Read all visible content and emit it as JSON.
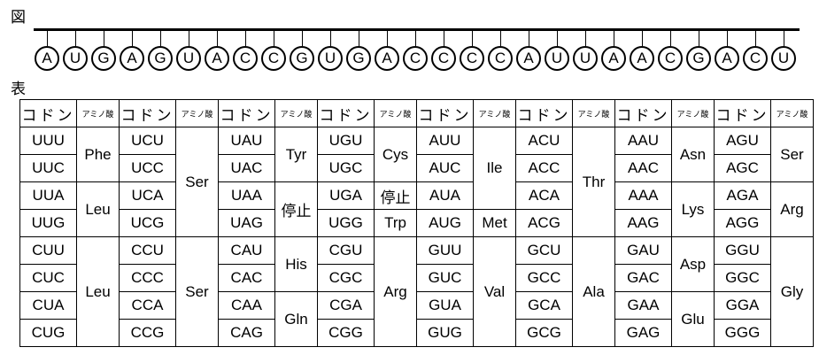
{
  "figure_label": "図",
  "table_label": "表",
  "sequence": [
    "A",
    "U",
    "G",
    "A",
    "G",
    "U",
    "A",
    "C",
    "C",
    "G",
    "U",
    "G",
    "A",
    "C",
    "C",
    "C",
    "C",
    "A",
    "U",
    "U",
    "A",
    "A",
    "C",
    "G",
    "A",
    "C",
    "U"
  ],
  "table": {
    "codon_header": "コドン",
    "amino_header": "アミノ酸",
    "columns": [
      {
        "codons": [
          "UUU",
          "UUC",
          "UUA",
          "UUG",
          "CUU",
          "CUC",
          "CUA",
          "CUG"
        ],
        "aminos": [
          {
            "name": "Phe",
            "span": 2
          },
          {
            "name": "Leu",
            "span": 2
          },
          {
            "name": "Leu",
            "span": 4
          }
        ]
      },
      {
        "codons": [
          "UCU",
          "UCC",
          "UCA",
          "UCG",
          "CCU",
          "CCC",
          "CCA",
          "CCG"
        ],
        "aminos": [
          {
            "name": "Ser",
            "span": 4
          },
          {
            "name": "Ser",
            "span": 4
          }
        ]
      },
      {
        "codons": [
          "UAU",
          "UAC",
          "UAA",
          "UAG",
          "CAU",
          "CAC",
          "CAA",
          "CAG"
        ],
        "aminos": [
          {
            "name": "Tyr",
            "span": 2
          },
          {
            "name": "停止",
            "span": 2
          },
          {
            "name": "His",
            "span": 2
          },
          {
            "name": "Gln",
            "span": 2
          }
        ]
      },
      {
        "codons": [
          "UGU",
          "UGC",
          "UGA",
          "UGG",
          "CGU",
          "CGC",
          "CGA",
          "CGG"
        ],
        "aminos": [
          {
            "name": "Cys",
            "span": 2
          },
          {
            "name": "停止",
            "span": 1
          },
          {
            "name": "Trp",
            "span": 1
          },
          {
            "name": "Arg",
            "span": 4
          }
        ]
      },
      {
        "codons": [
          "AUU",
          "AUC",
          "AUA",
          "AUG",
          "GUU",
          "GUC",
          "GUA",
          "GUG"
        ],
        "aminos": [
          {
            "name": "Ile",
            "span": 3
          },
          {
            "name": "Met",
            "span": 1
          },
          {
            "name": "Val",
            "span": 4
          }
        ]
      },
      {
        "codons": [
          "ACU",
          "ACC",
          "ACA",
          "ACG",
          "GCU",
          "GCC",
          "GCA",
          "GCG"
        ],
        "aminos": [
          {
            "name": "Thr",
            "span": 4
          },
          {
            "name": "Ala",
            "span": 4
          }
        ]
      },
      {
        "codons": [
          "AAU",
          "AAC",
          "AAA",
          "AAG",
          "GAU",
          "GAC",
          "GAA",
          "GAG"
        ],
        "aminos": [
          {
            "name": "Asn",
            "span": 2
          },
          {
            "name": "Lys",
            "span": 2
          },
          {
            "name": "Asp",
            "span": 2
          },
          {
            "name": "Glu",
            "span": 2
          }
        ]
      },
      {
        "codons": [
          "AGU",
          "AGC",
          "AGA",
          "AGG",
          "GGU",
          "GGC",
          "GGA",
          "GGG"
        ],
        "aminos": [
          {
            "name": "Ser",
            "span": 2
          },
          {
            "name": "Arg",
            "span": 2
          },
          {
            "name": "Gly",
            "span": 4
          }
        ]
      }
    ]
  }
}
